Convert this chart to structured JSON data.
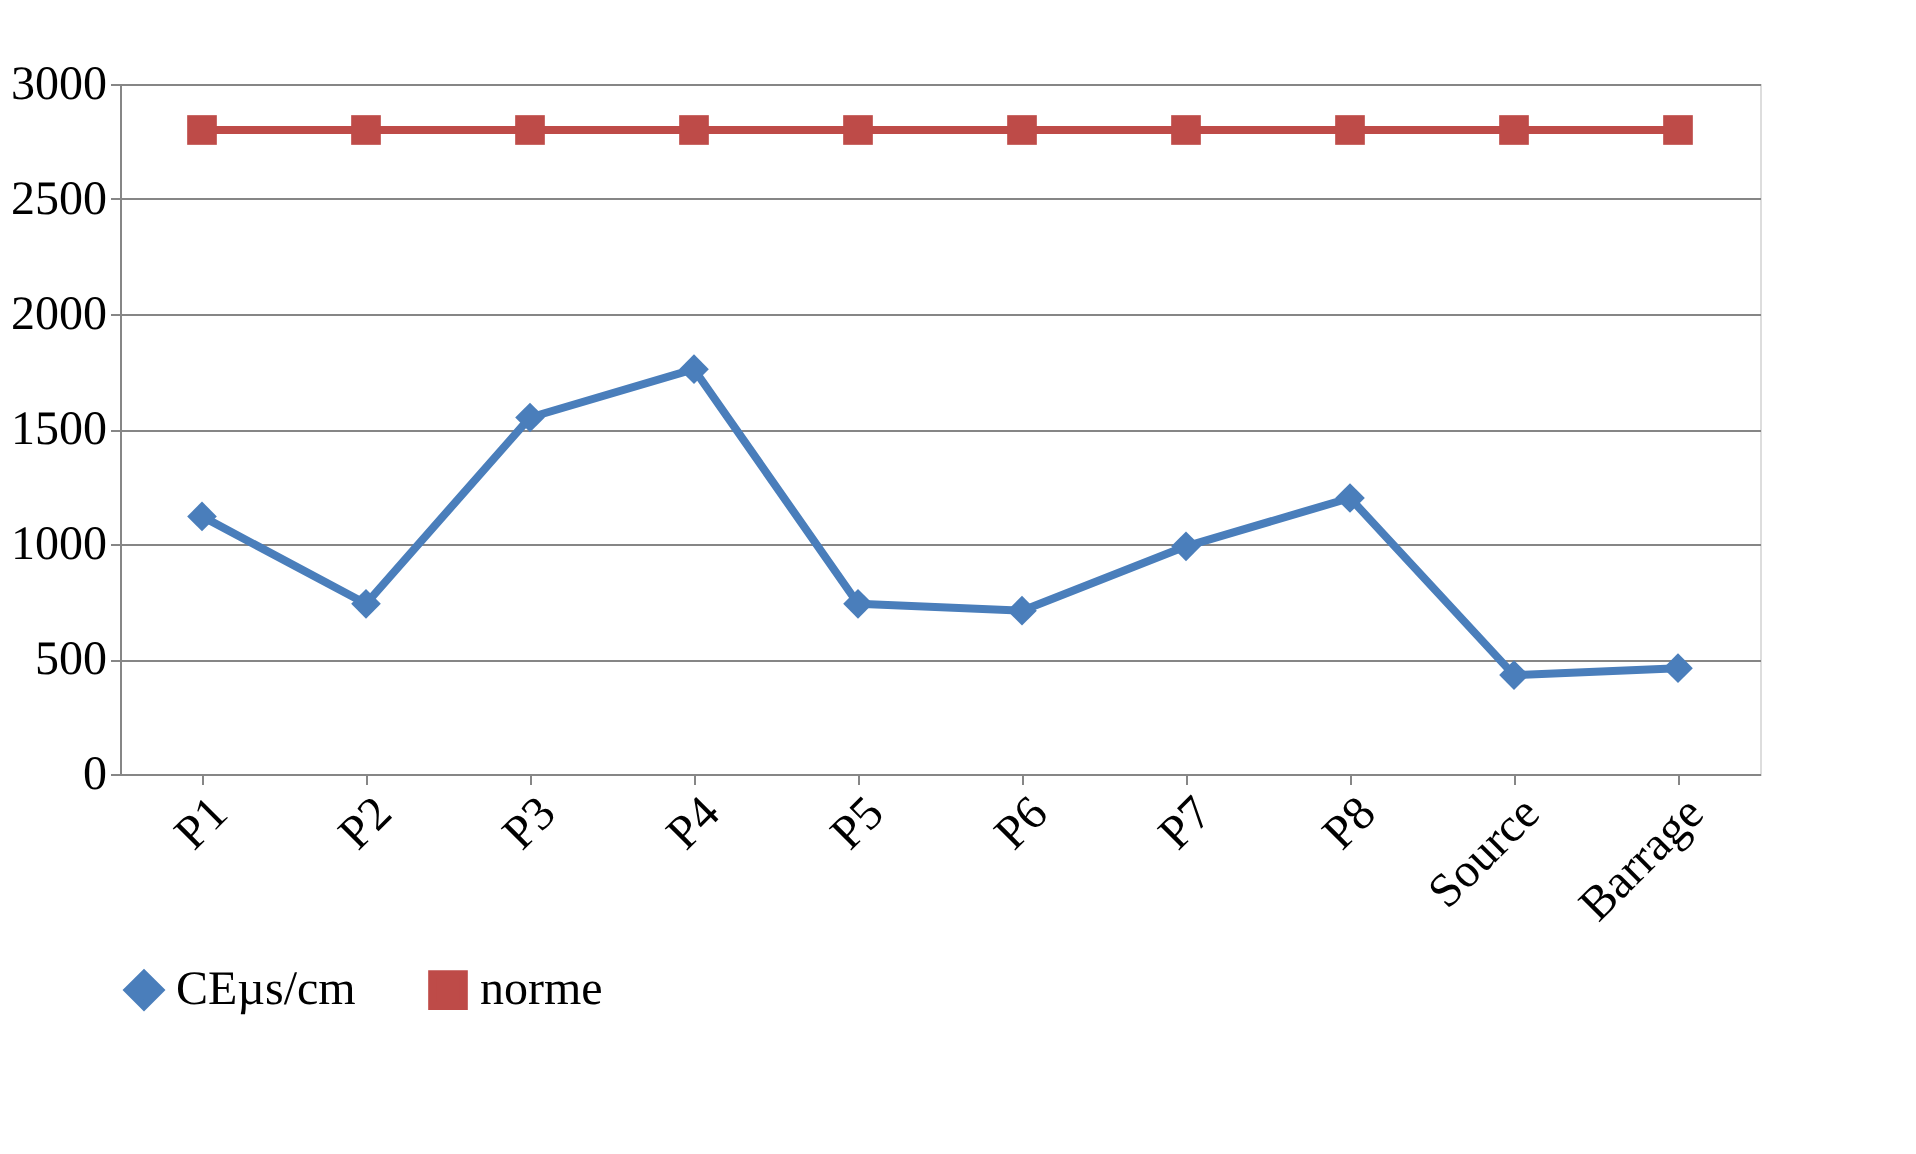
{
  "chart_data": {
    "type": "line",
    "categories": [
      "P1",
      "P2",
      "P3",
      "P4",
      "P5",
      "P6",
      "P7",
      "P8",
      "Source",
      "Barrage"
    ],
    "series": [
      {
        "name": "CEµs/cm",
        "color": "#4a7ebb",
        "marker": "diamond",
        "values": [
          1120,
          740,
          1550,
          1760,
          740,
          710,
          990,
          1200,
          430,
          460
        ]
      },
      {
        "name": "norme",
        "color": "#be4b48",
        "marker": "square",
        "values": [
          2800,
          2800,
          2800,
          2800,
          2800,
          2800,
          2800,
          2800,
          2800,
          2800
        ]
      }
    ],
    "ylim": [
      0,
      3000
    ],
    "yticks": [
      0,
      500,
      1000,
      1500,
      2000,
      2500,
      3000
    ],
    "grid": "y",
    "legend": "bottom"
  }
}
